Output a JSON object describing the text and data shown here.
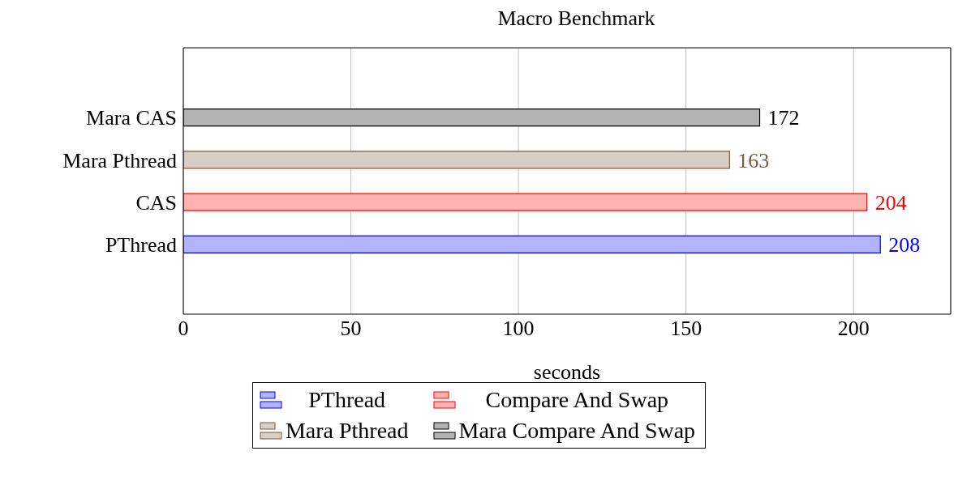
{
  "chart_data": {
    "type": "bar",
    "orientation": "horizontal",
    "stacked": true,
    "title": "Macro Benchmark",
    "xlabel": "seconds",
    "categories": [
      "Mara CAS",
      "Mara Pthread",
      "CAS",
      "PThread"
    ],
    "series": [
      {
        "name": "PThread",
        "color": "#0000ff",
        "values": [
          null,
          null,
          null,
          208
        ]
      },
      {
        "name": "Compare And Swap",
        "color": "#ff0000",
        "values": [
          null,
          null,
          204,
          null
        ]
      },
      {
        "name": "Mara Pthread",
        "color": "#7f5a3a",
        "values": [
          null,
          163,
          null,
          null
        ]
      },
      {
        "name": "Mara Compare And Swap",
        "color": "#000000",
        "values": [
          172,
          null,
          null,
          null
        ]
      }
    ],
    "xlim": [
      0,
      229
    ],
    "xticks": [
      0,
      50,
      100,
      150,
      200
    ],
    "grid": "x",
    "legend": "bottom",
    "data_labels": true
  }
}
